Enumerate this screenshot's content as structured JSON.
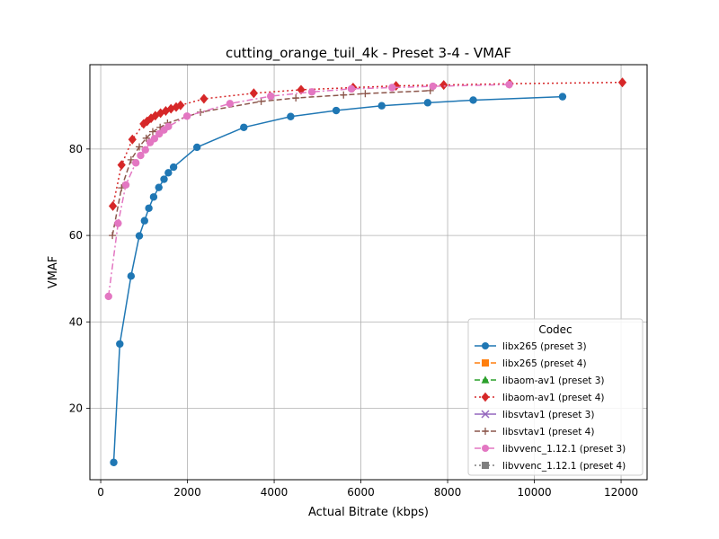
{
  "chart_data": {
    "type": "line",
    "title": "cutting_orange_tuil_4k - Preset 3-4 - VMAF",
    "xlabel": "Actual Bitrate (kbps)",
    "ylabel": "VMAF",
    "xlim": [
      -250,
      12600
    ],
    "ylim": [
      3.5,
      99.5
    ],
    "xticks": [
      0,
      2000,
      4000,
      6000,
      8000,
      10000,
      12000
    ],
    "yticks": [
      20,
      40,
      60,
      80
    ],
    "grid": true,
    "legend": {
      "title": "Codec",
      "placement": "lower-right"
    },
    "series": [
      {
        "name": "libx265 (preset 3)",
        "color": "#1f77b4",
        "marker": "circle",
        "linestyle": "solid",
        "x": [
          300,
          440,
          700,
          890,
          1010,
          1110,
          1220,
          1340,
          1460,
          1560,
          1680,
          2220,
          3300,
          4380,
          5430,
          6480,
          7540,
          8590,
          10650
        ],
        "y": [
          7.5,
          34.9,
          50.6,
          59.9,
          63.4,
          66.3,
          68.9,
          71.1,
          73.0,
          74.5,
          75.8,
          80.4,
          85.0,
          87.5,
          88.9,
          90.0,
          90.7,
          91.3,
          92.1
        ]
      },
      {
        "name": "libx265 (preset 4)",
        "color": "#ff7f0e",
        "marker": "square",
        "linestyle": "dashed",
        "x": [],
        "y": []
      },
      {
        "name": "libaom-av1 (preset 3)",
        "color": "#2ca02c",
        "marker": "triangle",
        "linestyle": "dashed",
        "x": [],
        "y": []
      },
      {
        "name": "libaom-av1 (preset 4)",
        "color": "#d62728",
        "marker": "diamond",
        "linestyle": "dotted",
        "x": [
          280,
          480,
          730,
          990,
          1070,
          1160,
          1260,
          1380,
          1500,
          1620,
          1740,
          1840,
          2380,
          3530,
          4620,
          5820,
          6810,
          7910,
          9430,
          12030
        ],
        "y": [
          66.8,
          76.3,
          82.2,
          85.8,
          86.4,
          87.1,
          87.7,
          88.3,
          88.8,
          89.3,
          89.7,
          90.1,
          91.6,
          92.9,
          93.7,
          94.2,
          94.6,
          94.8,
          95.1,
          95.4
        ]
      },
      {
        "name": "libsvtav1 (preset 3)",
        "color": "#9467bd",
        "marker": "x",
        "linestyle": "solid",
        "x": [],
        "y": []
      },
      {
        "name": "libsvtav1 (preset 4)",
        "color": "#8c564b",
        "marker": "plus",
        "linestyle": "dashed",
        "x": [
          270,
          480,
          700,
          890,
          1050,
          1200,
          1370,
          1540,
          2300,
          3700,
          4500,
          5600,
          6100,
          7600
        ],
        "y": [
          60.0,
          71.0,
          77.5,
          80.5,
          82.5,
          84.0,
          85.0,
          86.0,
          88.5,
          91.0,
          91.8,
          92.5,
          92.8,
          93.5
        ]
      },
      {
        "name": "libvvenc_1.12.1 (preset 3)",
        "color": "#e377c2",
        "marker": "circle",
        "linestyle": "dashdot",
        "x": [
          180,
          400,
          580,
          810,
          920,
          1030,
          1140,
          1240,
          1350,
          1460,
          1560,
          1990,
          2980,
          3920,
          4870,
          5780,
          6720,
          7660,
          9420
        ],
        "y": [
          45.9,
          62.8,
          71.7,
          76.8,
          78.5,
          79.8,
          81.5,
          82.4,
          83.5,
          84.4,
          85.2,
          87.6,
          90.5,
          92.2,
          93.2,
          93.9,
          94.2,
          94.5,
          94.9
        ]
      },
      {
        "name": "libvvenc_1.12.1 (preset 4)",
        "color": "#7f7f7f",
        "marker": "square",
        "linestyle": "dotted",
        "x": [],
        "y": []
      }
    ]
  }
}
